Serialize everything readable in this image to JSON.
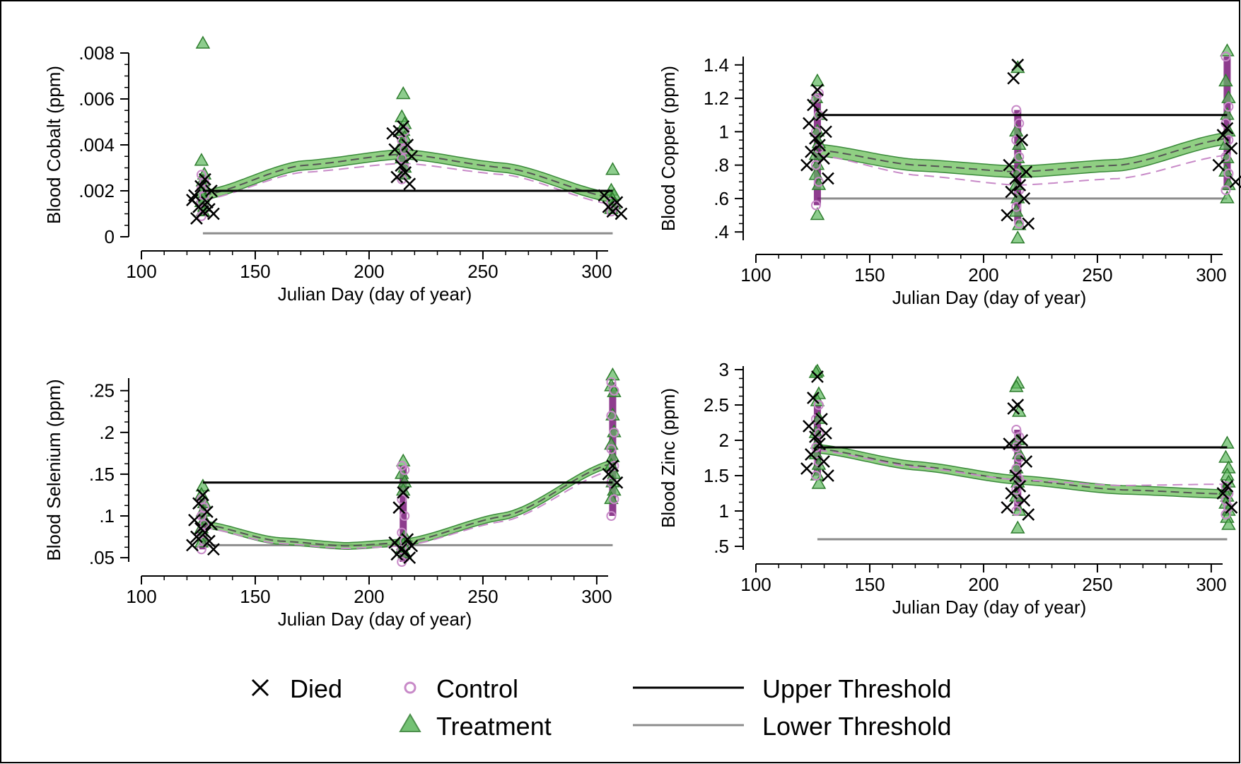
{
  "legend": {
    "died": "Died",
    "control": "Control",
    "treatment": "Treatment",
    "upper": "Upper Threshold",
    "lower": "Lower Threshold"
  },
  "colors": {
    "died": "#000000",
    "control": "#c88ac8",
    "treatment": "#2e9a2e",
    "treatment_fill": "#5cb85c",
    "band": "#6bbf59",
    "upper": "#000000",
    "lower": "#8c8c8c",
    "purple_dense": "#7a1a7a"
  },
  "chart_data": [
    {
      "type": "scatter",
      "panel": "cobalt",
      "xlabel": "Julian Day (day of year)",
      "ylabel": "Blood Cobalt (ppm)",
      "xlim": [
        100,
        305
      ],
      "ylim": [
        0,
        0.008
      ],
      "xticks": [
        100,
        150,
        200,
        250,
        300
      ],
      "xtick_labels": [
        "100",
        "150",
        "200",
        "250",
        "300"
      ],
      "yticks": [
        0,
        0.002,
        0.004,
        0.006,
        0.008
      ],
      "ytick_labels": [
        "0",
        ".002",
        ".004",
        ".006",
        ".008"
      ],
      "upper_threshold": 0.002,
      "lower_threshold": 0.00015,
      "threshold_x": [
        127,
        307
      ],
      "fit_treatment": [
        [
          127,
          0.0018
        ],
        [
          170,
          0.0031
        ],
        [
          215,
          0.0036
        ],
        [
          260,
          0.003
        ],
        [
          307,
          0.0017
        ]
      ],
      "fit_control": [
        [
          127,
          0.0016
        ],
        [
          170,
          0.0028
        ],
        [
          215,
          0.0032
        ],
        [
          260,
          0.0027
        ],
        [
          307,
          0.0014
        ]
      ],
      "band_halfwidth": 0.0002,
      "groups": [
        {
          "x": 127,
          "died": [
            0.0011,
            0.0013,
            0.0015,
            0.0018,
            0.002,
            0.0022,
            0.0025,
            0.0008,
            0.0012,
            0.0016,
            0.001
          ],
          "control": [
            0.0009,
            0.0012,
            0.0015,
            0.0018,
            0.0021,
            0.0024,
            0.0027
          ],
          "treatment": [
            0.0084,
            0.0033,
            0.0027,
            0.0024,
            0.0021,
            0.0019,
            0.0017,
            0.0015,
            0.0013,
            0.0011
          ]
        },
        {
          "x": 215,
          "died": [
            0.0048,
            0.0046,
            0.004,
            0.0038,
            0.0035,
            0.0031,
            0.0028,
            0.0026,
            0.0023,
            0.0045
          ],
          "control": [
            0.0025,
            0.003,
            0.0034,
            0.0038,
            0.0042,
            0.0046
          ],
          "treatment": [
            0.0062,
            0.0052,
            0.0049,
            0.0046,
            0.0043,
            0.004,
            0.0037,
            0.0034,
            0.003,
            0.0027
          ]
        },
        {
          "x": 307,
          "died": [
            0.0011,
            0.0013,
            0.0015,
            0.0018,
            0.001
          ],
          "control": [
            0.0011,
            0.0013,
            0.0015
          ],
          "treatment": [
            0.0029,
            0.002,
            0.0018,
            0.0016,
            0.0014,
            0.0012
          ]
        }
      ]
    },
    {
      "type": "scatter",
      "panel": "copper",
      "xlabel": "Julian Day (day of year)",
      "ylabel": "Blood Copper (ppm)",
      "xlim": [
        100,
        305
      ],
      "ylim": [
        0.35,
        1.45
      ],
      "xticks": [
        100,
        150,
        200,
        250,
        300
      ],
      "xtick_labels": [
        "100",
        "150",
        "200",
        "250",
        "300"
      ],
      "yticks": [
        0.4,
        0.6,
        0.8,
        1,
        1.2,
        1.4
      ],
      "ytick_labels": [
        ".4",
        ".6",
        ".8",
        "1",
        "1.2",
        "1.4"
      ],
      "upper_threshold": 1.1,
      "lower_threshold": 0.6,
      "threshold_x": [
        127,
        307
      ],
      "fit_treatment": [
        [
          127,
          0.89
        ],
        [
          170,
          0.8
        ],
        [
          215,
          0.76
        ],
        [
          260,
          0.8
        ],
        [
          307,
          0.96
        ]
      ],
      "fit_control": [
        [
          127,
          0.86
        ],
        [
          170,
          0.74
        ],
        [
          215,
          0.68
        ],
        [
          260,
          0.72
        ],
        [
          307,
          0.86
        ]
      ],
      "band_halfwidth": 0.035,
      "groups": [
        {
          "x": 127,
          "died": [
            1.25,
            1.16,
            1.1,
            1.05,
            1.0,
            0.96,
            0.92,
            0.88,
            0.84,
            0.8,
            0.72
          ],
          "control": [
            0.56,
            0.7,
            0.8,
            0.9,
            1.0,
            1.1,
            1.2,
            1.23
          ],
          "treatment": [
            1.3,
            1.2,
            1.1,
            1.0,
            0.93,
            0.86,
            0.8,
            0.74,
            0.68,
            0.5
          ]
        },
        {
          "x": 215,
          "died": [
            1.4,
            1.32,
            0.95,
            0.8,
            0.76,
            0.72,
            0.68,
            0.64,
            0.6,
            0.5,
            0.45
          ],
          "control": [
            1.13,
            1.05,
            0.95,
            0.85,
            0.75,
            0.65,
            0.55,
            0.45
          ],
          "treatment": [
            1.38,
            1.0,
            0.92,
            0.84,
            0.76,
            0.68,
            0.6,
            0.52,
            0.44,
            0.36
          ]
        },
        {
          "x": 307,
          "died": [
            1.02,
            0.98,
            0.9,
            0.8,
            0.7
          ],
          "control": [
            1.45,
            1.15,
            1.05,
            0.95,
            0.85,
            0.75,
            0.65
          ],
          "treatment": [
            1.48,
            1.3,
            1.2,
            1.1,
            1.0,
            0.92,
            0.84,
            0.76,
            0.68,
            0.6
          ]
        }
      ]
    },
    {
      "type": "scatter",
      "panel": "selenium",
      "xlabel": "Julian Day (day of year)",
      "ylabel": "Blood Selenium (ppm)",
      "xlim": [
        100,
        305
      ],
      "ylim": [
        0.045,
        0.265
      ],
      "xticks": [
        100,
        150,
        200,
        250,
        300
      ],
      "xtick_labels": [
        "100",
        "150",
        "200",
        "250",
        "300"
      ],
      "yticks": [
        0.05,
        0.1,
        0.15,
        0.2,
        0.25
      ],
      "ytick_labels": [
        ".05",
        ".1",
        ".15",
        ".2",
        ".25"
      ],
      "upper_threshold": 0.14,
      "lower_threshold": 0.065,
      "threshold_x": [
        127,
        307
      ],
      "fit_treatment": [
        [
          127,
          0.09
        ],
        [
          160,
          0.07
        ],
        [
          190,
          0.064
        ],
        [
          215,
          0.068
        ],
        [
          260,
          0.1
        ],
        [
          307,
          0.163
        ]
      ],
      "fit_control": [
        [
          127,
          0.086
        ],
        [
          160,
          0.067
        ],
        [
          190,
          0.061
        ],
        [
          215,
          0.064
        ],
        [
          260,
          0.094
        ],
        [
          307,
          0.155
        ]
      ],
      "band_halfwidth": 0.004,
      "groups": [
        {
          "x": 127,
          "died": [
            0.125,
            0.115,
            0.105,
            0.095,
            0.09,
            0.085,
            0.08,
            0.075,
            0.07,
            0.065,
            0.06
          ],
          "control": [
            0.06,
            0.07,
            0.08,
            0.09,
            0.1,
            0.11,
            0.12
          ],
          "treatment": [
            0.135,
            0.125,
            0.115,
            0.105,
            0.095,
            0.085,
            0.075,
            0.068
          ]
        },
        {
          "x": 215,
          "died": [
            0.128,
            0.11,
            0.072,
            0.068,
            0.064,
            0.06,
            0.057,
            0.054,
            0.05
          ],
          "control": [
            0.16,
            0.155,
            0.12,
            0.1,
            0.08,
            0.07,
            0.06,
            0.05,
            0.045
          ],
          "treatment": [
            0.165,
            0.15,
            0.14,
            0.13,
            0.075,
            0.07,
            0.065,
            0.06,
            0.055
          ]
        },
        {
          "x": 307,
          "died": [
            0.16,
            0.15,
            0.14
          ],
          "control": [
            0.1,
            0.12,
            0.14,
            0.16,
            0.18,
            0.2,
            0.22,
            0.25,
            0.26
          ],
          "treatment": [
            0.268,
            0.255,
            0.248,
            0.22,
            0.2,
            0.185,
            0.17,
            0.16,
            0.15,
            0.14,
            0.13,
            0.12
          ]
        }
      ]
    },
    {
      "type": "scatter",
      "panel": "zinc",
      "xlabel": "Julian Day (day of year)",
      "ylabel": "Blood Zinc (ppm)",
      "xlim": [
        100,
        305
      ],
      "ylim": [
        0.45,
        3.05
      ],
      "xticks": [
        100,
        150,
        200,
        250,
        300
      ],
      "xtick_labels": [
        "100",
        "150",
        "200",
        "250",
        "300"
      ],
      "yticks": [
        0.5,
        1,
        1.5,
        2,
        2.5,
        3
      ],
      "ytick_labels": [
        ".5",
        "1",
        "1.5",
        "2",
        "2.5",
        "3"
      ],
      "upper_threshold": 1.9,
      "lower_threshold": 0.6,
      "threshold_x": [
        127,
        307
      ],
      "fit_treatment": [
        [
          127,
          1.88
        ],
        [
          170,
          1.64
        ],
        [
          215,
          1.44
        ],
        [
          260,
          1.3
        ],
        [
          307,
          1.24
        ]
      ],
      "fit_control": [
        [
          127,
          1.86
        ],
        [
          170,
          1.62
        ],
        [
          215,
          1.44
        ],
        [
          260,
          1.36
        ],
        [
          307,
          1.38
        ]
      ],
      "band_halfwidth": 0.06,
      "groups": [
        {
          "x": 127,
          "died": [
            2.9,
            2.6,
            2.3,
            2.2,
            2.1,
            2.05,
            1.95,
            1.8,
            1.7,
            1.6,
            1.5
          ],
          "control": [
            1.5,
            1.7,
            1.9,
            2.1,
            2.3,
            2.5
          ],
          "treatment": [
            2.97,
            2.95,
            2.65,
            2.55,
            2.3,
            2.1,
            1.95,
            1.8,
            1.65,
            1.5,
            1.38
          ]
        },
        {
          "x": 215,
          "died": [
            2.5,
            2.45,
            2.0,
            1.95,
            1.7,
            1.5,
            1.35,
            1.25,
            1.15,
            1.05,
            0.95
          ],
          "control": [
            2.15,
            2.05,
            1.9,
            1.75,
            1.6,
            1.45,
            1.3,
            1.15,
            1.0
          ],
          "treatment": [
            2.8,
            2.75,
            2.4,
            2.0,
            1.8,
            1.6,
            1.4,
            1.2,
            1.0,
            0.75
          ]
        },
        {
          "x": 307,
          "died": [
            1.35,
            1.25,
            1.05
          ],
          "control": [
            1.35,
            1.25,
            1.15,
            1.05,
            0.95
          ],
          "treatment": [
            1.95,
            1.75,
            1.6,
            1.5,
            1.4,
            1.3,
            1.2,
            1.1,
            1.0,
            0.9,
            0.8
          ]
        }
      ]
    }
  ]
}
